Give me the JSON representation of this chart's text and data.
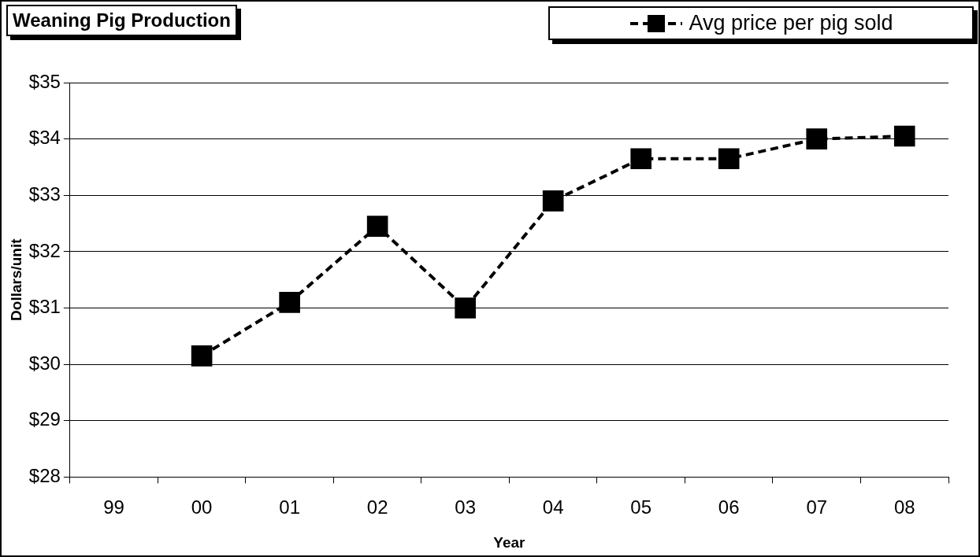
{
  "chart_data": {
    "type": "line",
    "title": "Weaning Pig Production",
    "xlabel": "Year",
    "ylabel": "Dollars/unit",
    "categories": [
      "99",
      "00",
      "01",
      "02",
      "03",
      "04",
      "05",
      "06",
      "07",
      "08"
    ],
    "series": [
      {
        "name": "Avg price per pig sold",
        "color": "#000000",
        "values": [
          null,
          30.15,
          31.1,
          32.45,
          31.0,
          32.9,
          33.65,
          33.65,
          34.0,
          34.05
        ]
      }
    ],
    "ylim": [
      28,
      35
    ],
    "yticks": [
      {
        "value": 28,
        "label": "$28"
      },
      {
        "value": 29,
        "label": "$29"
      },
      {
        "value": 30,
        "label": "$30"
      },
      {
        "value": 31,
        "label": "$31"
      },
      {
        "value": 32,
        "label": "$32"
      },
      {
        "value": 33,
        "label": "$33"
      },
      {
        "value": 34,
        "label": "$34"
      },
      {
        "value": 35,
        "label": "$35"
      }
    ],
    "grid": "y",
    "legend": "top right",
    "marker": "square",
    "line_style": "dashed"
  }
}
